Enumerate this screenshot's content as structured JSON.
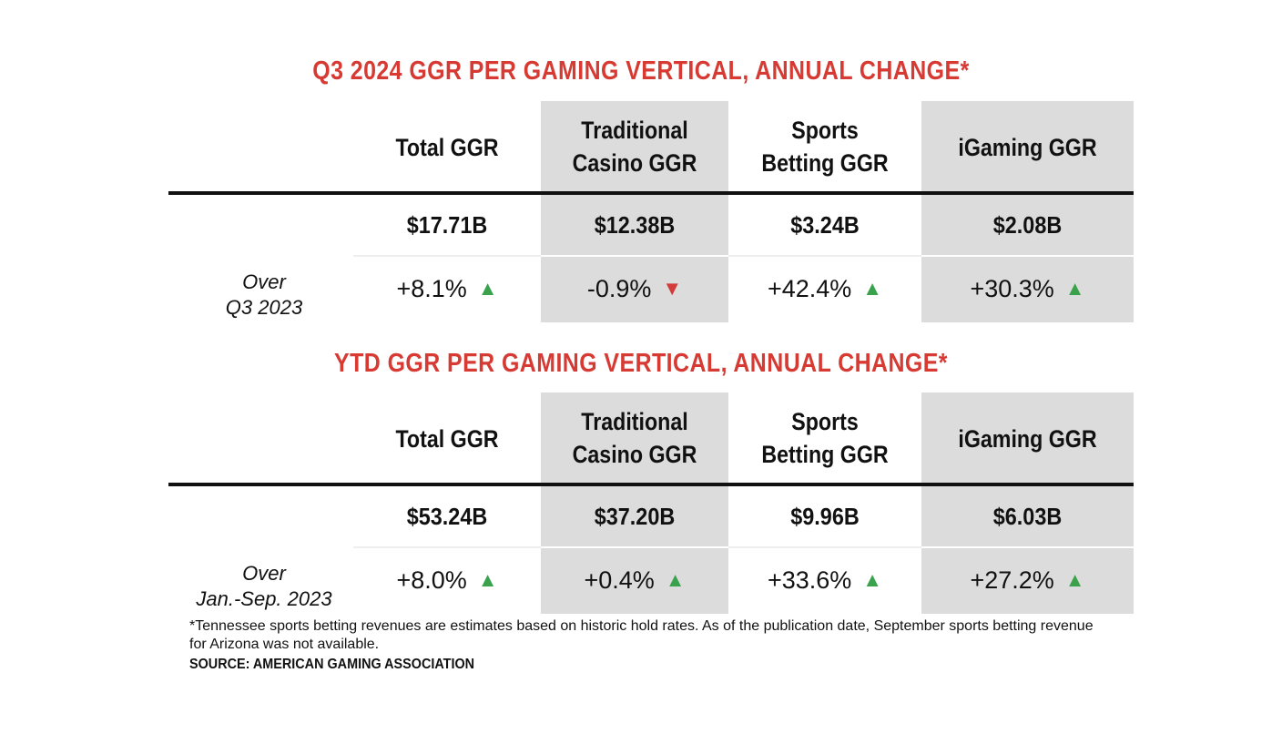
{
  "chart_data": [
    {
      "type": "table",
      "title": "Q3 2024 GGR PER GAMING VERTICAL, ANNUAL CHANGE*",
      "columns": [
        {
          "header_line1": "Total GGR",
          "header_line2": "",
          "value": "$17.71B",
          "change": "+8.1%",
          "direction": "up",
          "value_billions": 17.71,
          "change_pct": 8.1
        },
        {
          "header_line1": "Traditional",
          "header_line2": "Casino GGR",
          "value": "$12.38B",
          "change": "-0.9%",
          "direction": "down",
          "value_billions": 12.38,
          "change_pct": -0.9
        },
        {
          "header_line1": "Sports",
          "header_line2": "Betting GGR",
          "value": "$3.24B",
          "change": "+42.4%",
          "direction": "up",
          "value_billions": 3.24,
          "change_pct": 42.4
        },
        {
          "header_line1": "iGaming GGR",
          "header_line2": "",
          "value": "$2.08B",
          "change": "+30.3%",
          "direction": "up",
          "value_billions": 2.08,
          "change_pct": 30.3
        }
      ],
      "row_label_line1": "Over",
      "row_label_line2": "Q3 2023"
    },
    {
      "type": "table",
      "title": "YTD GGR PER GAMING VERTICAL, ANNUAL CHANGE*",
      "columns": [
        {
          "header_line1": "Total GGR",
          "header_line2": "",
          "value": "$53.24B",
          "change": "+8.0%",
          "direction": "up",
          "value_billions": 53.24,
          "change_pct": 8.0
        },
        {
          "header_line1": "Traditional",
          "header_line2": "Casino GGR",
          "value": "$37.20B",
          "change": "+0.4%",
          "direction": "up",
          "value_billions": 37.2,
          "change_pct": 0.4
        },
        {
          "header_line1": "Sports",
          "header_line2": "Betting GGR",
          "value": "$9.96B",
          "change": "+33.6%",
          "direction": "up",
          "value_billions": 9.96,
          "change_pct": 33.6
        },
        {
          "header_line1": "iGaming GGR",
          "header_line2": "",
          "value": "$6.03B",
          "change": "+27.2%",
          "direction": "up",
          "value_billions": 6.03,
          "change_pct": 27.2
        }
      ],
      "row_label_line1": "Over",
      "row_label_line2": "Jan.-Sep. 2023"
    }
  ],
  "colors": {
    "title": "#d63a32",
    "shade": "#dcdcdc",
    "up": "#3aa14c",
    "down": "#d33a3a"
  },
  "footnote": "*Tennessee sports betting revenues are estimates based on historic hold rates. As of the publication date, September sports betting revenue for Arizona was not available.",
  "source": "SOURCE: AMERICAN GAMING ASSOCIATION"
}
